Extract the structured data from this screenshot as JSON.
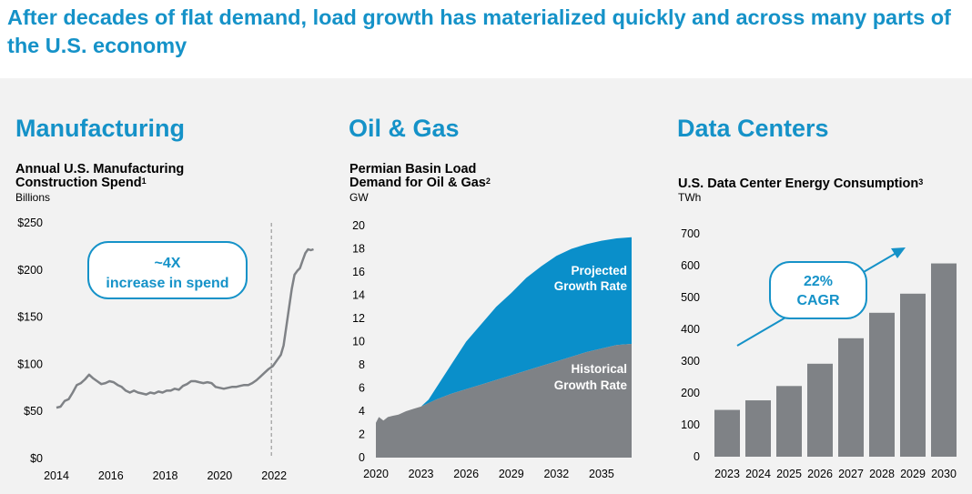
{
  "headline": "After decades of flat demand, load growth has materialized quickly and across many parts of the U.S. economy",
  "colors": {
    "accent": "#1592c8",
    "gray_series": "#7f8286",
    "blue_series": "#0a8fca",
    "background": "#f2f2f2"
  },
  "panels": [
    {
      "section": "Manufacturing",
      "chart_title": "Annual U.S. Manufacturing Construction Spend",
      "footnote": "1",
      "unit": "Billions"
    },
    {
      "section": "Oil & Gas",
      "chart_title": "Permian Basin Load Demand for Oil & Gas",
      "footnote": "2",
      "unit": "GW"
    },
    {
      "section": "Data Centers",
      "chart_title": "U.S. Data Center Energy Consumption",
      "footnote": "3",
      "unit": "TWh"
    }
  ],
  "callouts": {
    "manufacturing": {
      "line1": "~4X",
      "line2": "increase in spend"
    },
    "data_centers": {
      "line1": "22%",
      "line2": "CAGR"
    }
  },
  "chart_data": [
    {
      "type": "line",
      "title": "Annual U.S. Manufacturing Construction Spend",
      "ylabel": "Billions",
      "ylim": [
        0,
        250
      ],
      "yticks": [
        0,
        50,
        100,
        150,
        200,
        250
      ],
      "ytick_labels": [
        "$0",
        "$50",
        "$100",
        "$150",
        "$200",
        "$250"
      ],
      "xlim": [
        2014,
        2023.5
      ],
      "xticks": [
        2014,
        2016,
        2018,
        2020,
        2022
      ],
      "grid": false,
      "reference_line_x": 2021.9,
      "series": [
        {
          "color": "#7f8286",
          "points": [
            [
              2014.0,
              54
            ],
            [
              2014.15,
              55
            ],
            [
              2014.3,
              61
            ],
            [
              2014.45,
              63
            ],
            [
              2014.6,
              70
            ],
            [
              2014.75,
              78
            ],
            [
              2014.9,
              80
            ],
            [
              2015.05,
              84
            ],
            [
              2015.2,
              89
            ],
            [
              2015.35,
              85
            ],
            [
              2015.5,
              82
            ],
            [
              2015.65,
              79
            ],
            [
              2015.8,
              80
            ],
            [
              2015.95,
              82
            ],
            [
              2016.1,
              81
            ],
            [
              2016.25,
              78
            ],
            [
              2016.4,
              76
            ],
            [
              2016.55,
              72
            ],
            [
              2016.7,
              70
            ],
            [
              2016.85,
              72
            ],
            [
              2017.0,
              70
            ],
            [
              2017.15,
              69
            ],
            [
              2017.3,
              68
            ],
            [
              2017.45,
              70
            ],
            [
              2017.6,
              69
            ],
            [
              2017.75,
              71
            ],
            [
              2017.9,
              70
            ],
            [
              2018.05,
              72
            ],
            [
              2018.2,
              72
            ],
            [
              2018.35,
              74
            ],
            [
              2018.5,
              73
            ],
            [
              2018.65,
              77
            ],
            [
              2018.8,
              79
            ],
            [
              2018.95,
              82
            ],
            [
              2019.1,
              82
            ],
            [
              2019.25,
              81
            ],
            [
              2019.4,
              80
            ],
            [
              2019.55,
              81
            ],
            [
              2019.7,
              80
            ],
            [
              2019.85,
              76
            ],
            [
              2020.0,
              75
            ],
            [
              2020.15,
              74
            ],
            [
              2020.3,
              75
            ],
            [
              2020.45,
              76
            ],
            [
              2020.6,
              76
            ],
            [
              2020.75,
              77
            ],
            [
              2020.9,
              78
            ],
            [
              2021.05,
              78
            ],
            [
              2021.2,
              80
            ],
            [
              2021.35,
              83
            ],
            [
              2021.5,
              87
            ],
            [
              2021.65,
              91
            ],
            [
              2021.8,
              95
            ],
            [
              2021.95,
              98
            ],
            [
              2022.1,
              104
            ],
            [
              2022.25,
              110
            ],
            [
              2022.35,
              120
            ],
            [
              2022.45,
              140
            ],
            [
              2022.55,
              160
            ],
            [
              2022.65,
              180
            ],
            [
              2022.75,
              195
            ],
            [
              2022.85,
              199
            ],
            [
              2022.95,
              202
            ],
            [
              2023.05,
              210
            ],
            [
              2023.15,
              218
            ],
            [
              2023.25,
              222
            ],
            [
              2023.35,
              221
            ],
            [
              2023.45,
              222
            ]
          ]
        }
      ]
    },
    {
      "type": "area",
      "title": "Permian Basin Load Demand for Oil & Gas",
      "ylabel": "GW",
      "ylim": [
        0,
        20
      ],
      "yticks": [
        0,
        2,
        4,
        6,
        8,
        10,
        12,
        14,
        16,
        18,
        20
      ],
      "xlim": [
        2020,
        2037
      ],
      "xticks": [
        2020,
        2023,
        2026,
        2029,
        2032,
        2035
      ],
      "grid": false,
      "series": [
        {
          "name": "Historical Growth Rate",
          "color": "#7f8286",
          "points": [
            [
              2020.0,
              3.0
            ],
            [
              2020.2,
              3.5
            ],
            [
              2020.5,
              3.2
            ],
            [
              2020.8,
              3.5
            ],
            [
              2021.1,
              3.6
            ],
            [
              2021.5,
              3.7
            ],
            [
              2022.0,
              4.0
            ],
            [
              2022.5,
              4.2
            ],
            [
              2023.0,
              4.4
            ],
            [
              2024.0,
              5.0
            ],
            [
              2025.0,
              5.5
            ],
            [
              2026.0,
              5.9
            ],
            [
              2027.0,
              6.3
            ],
            [
              2028.0,
              6.7
            ],
            [
              2029.0,
              7.1
            ],
            [
              2030.0,
              7.5
            ],
            [
              2031.0,
              7.9
            ],
            [
              2032.0,
              8.3
            ],
            [
              2033.0,
              8.7
            ],
            [
              2034.0,
              9.1
            ],
            [
              2035.0,
              9.4
            ],
            [
              2036.0,
              9.7
            ],
            [
              2037.0,
              9.8
            ]
          ]
        },
        {
          "name": "Projected Growth Rate",
          "color": "#0a8fca",
          "points": [
            [
              2023.0,
              4.4
            ],
            [
              2023.5,
              5.0
            ],
            [
              2024.0,
              6.0
            ],
            [
              2025.0,
              8.0
            ],
            [
              2026.0,
              10.0
            ],
            [
              2027.0,
              11.5
            ],
            [
              2028.0,
              13.0
            ],
            [
              2029.0,
              14.2
            ],
            [
              2030.0,
              15.5
            ],
            [
              2031.0,
              16.5
            ],
            [
              2032.0,
              17.4
            ],
            [
              2033.0,
              18.0
            ],
            [
              2034.0,
              18.4
            ],
            [
              2035.0,
              18.7
            ],
            [
              2036.0,
              18.9
            ],
            [
              2037.0,
              19.0
            ]
          ]
        }
      ]
    },
    {
      "type": "bar",
      "title": "U.S. Data Center Energy Consumption",
      "ylabel": "TWh",
      "ylim": [
        0,
        700
      ],
      "yticks": [
        0,
        100,
        200,
        300,
        400,
        500,
        600,
        700
      ],
      "categories": [
        "2023",
        "2024",
        "2025",
        "2026",
        "2027",
        "2028",
        "2029",
        "2030"
      ],
      "values": [
        147,
        177,
        222,
        292,
        372,
        452,
        512,
        607
      ],
      "color": "#7f8286",
      "grid": false
    }
  ]
}
